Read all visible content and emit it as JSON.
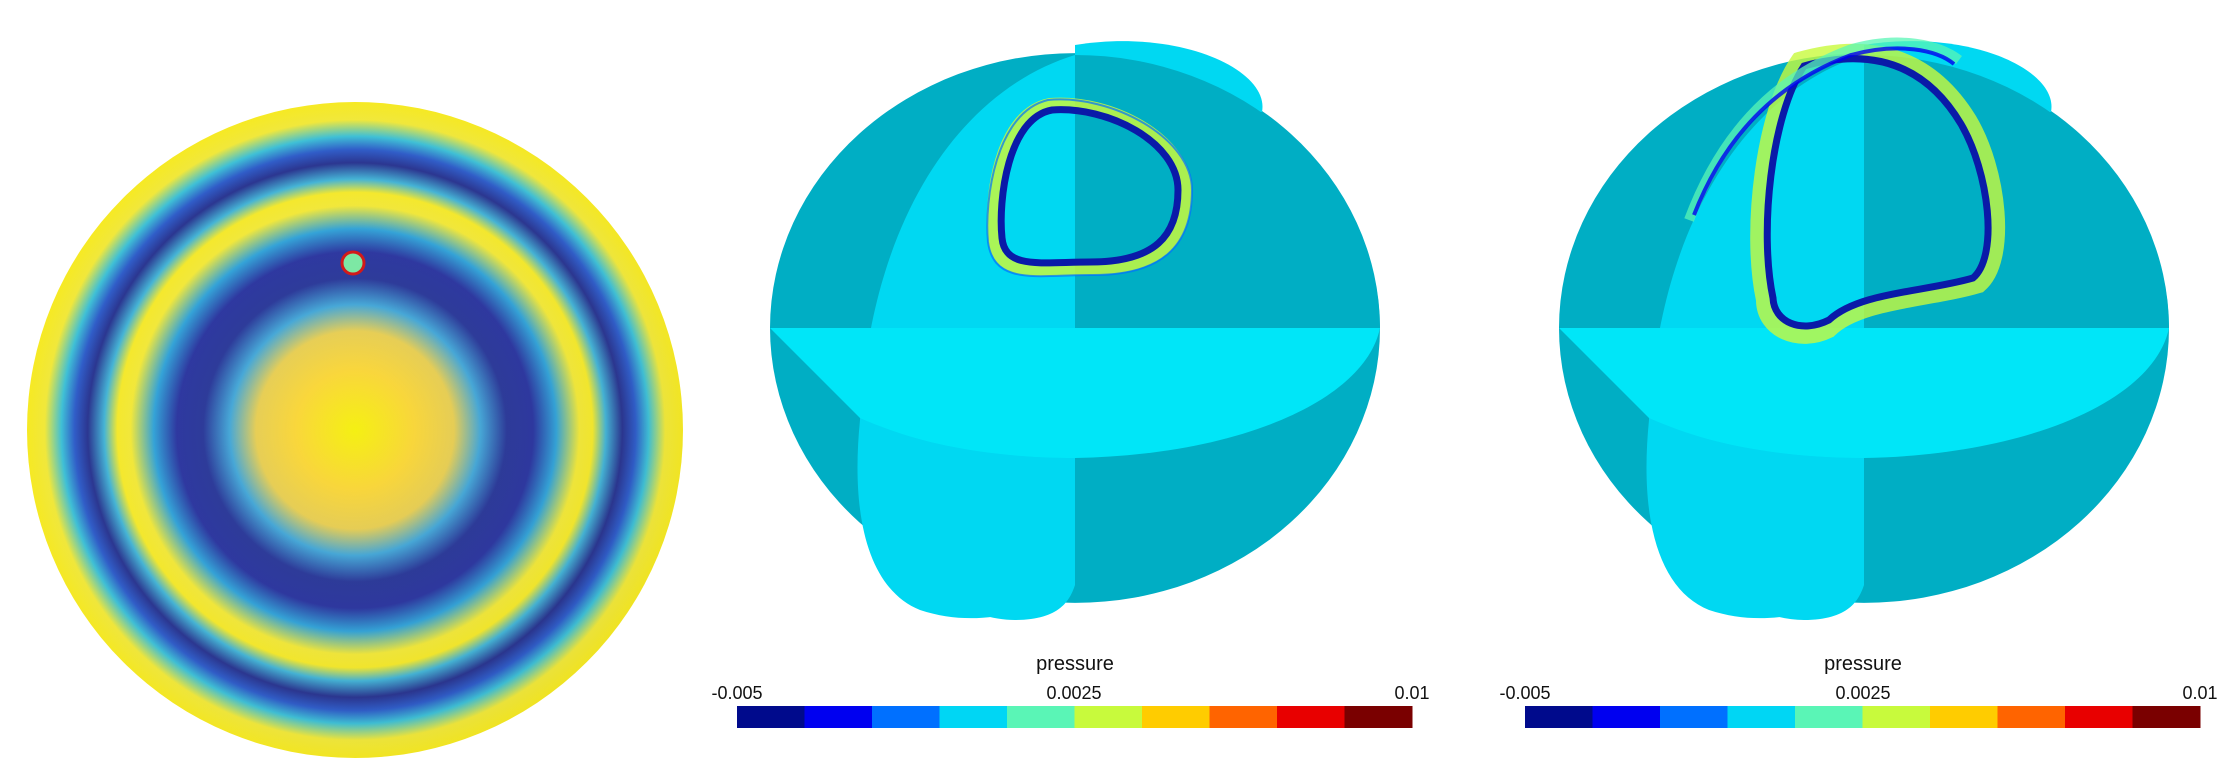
{
  "panels": [
    {
      "id": "disk",
      "ring_colors": [
        "#f2f20b",
        "#ffc93a",
        "#f0e23a",
        "#3cb4d6",
        "#2f5bd0",
        "#2b2e86",
        "#2e58c6",
        "#3db6d8",
        "#f3e735",
        "#f7ef1f"
      ],
      "source_marker": {
        "fill": "#7de8a4",
        "stroke": "#d21a1a"
      }
    },
    {
      "id": "sphere-early",
      "colorbar": {
        "title": "pressure",
        "min_label": "-0.005",
        "mid_label": "0.0025",
        "max_label": "0.01",
        "colors": [
          "#000a8c",
          "#0000f0",
          "#0070ff",
          "#00d6f4",
          "#5af5b6",
          "#c8fa3c",
          "#ffcc00",
          "#ff6400",
          "#e80000",
          "#7a0000"
        ]
      }
    },
    {
      "id": "sphere-late",
      "colorbar": {
        "title": "pressure",
        "min_label": "-0.005",
        "mid_label": "0.0025",
        "max_label": "0.01",
        "colors": [
          "#000a8c",
          "#0000f0",
          "#0070ff",
          "#00d6f4",
          "#5af5b6",
          "#c8fa3c",
          "#ffcc00",
          "#ff6400",
          "#e80000",
          "#7a0000"
        ]
      }
    }
  ],
  "sphere_colors": {
    "dark": "#00aec4",
    "light": "#00d8f2",
    "mid": "#00c4dc",
    "bright": "#00e6f8"
  }
}
